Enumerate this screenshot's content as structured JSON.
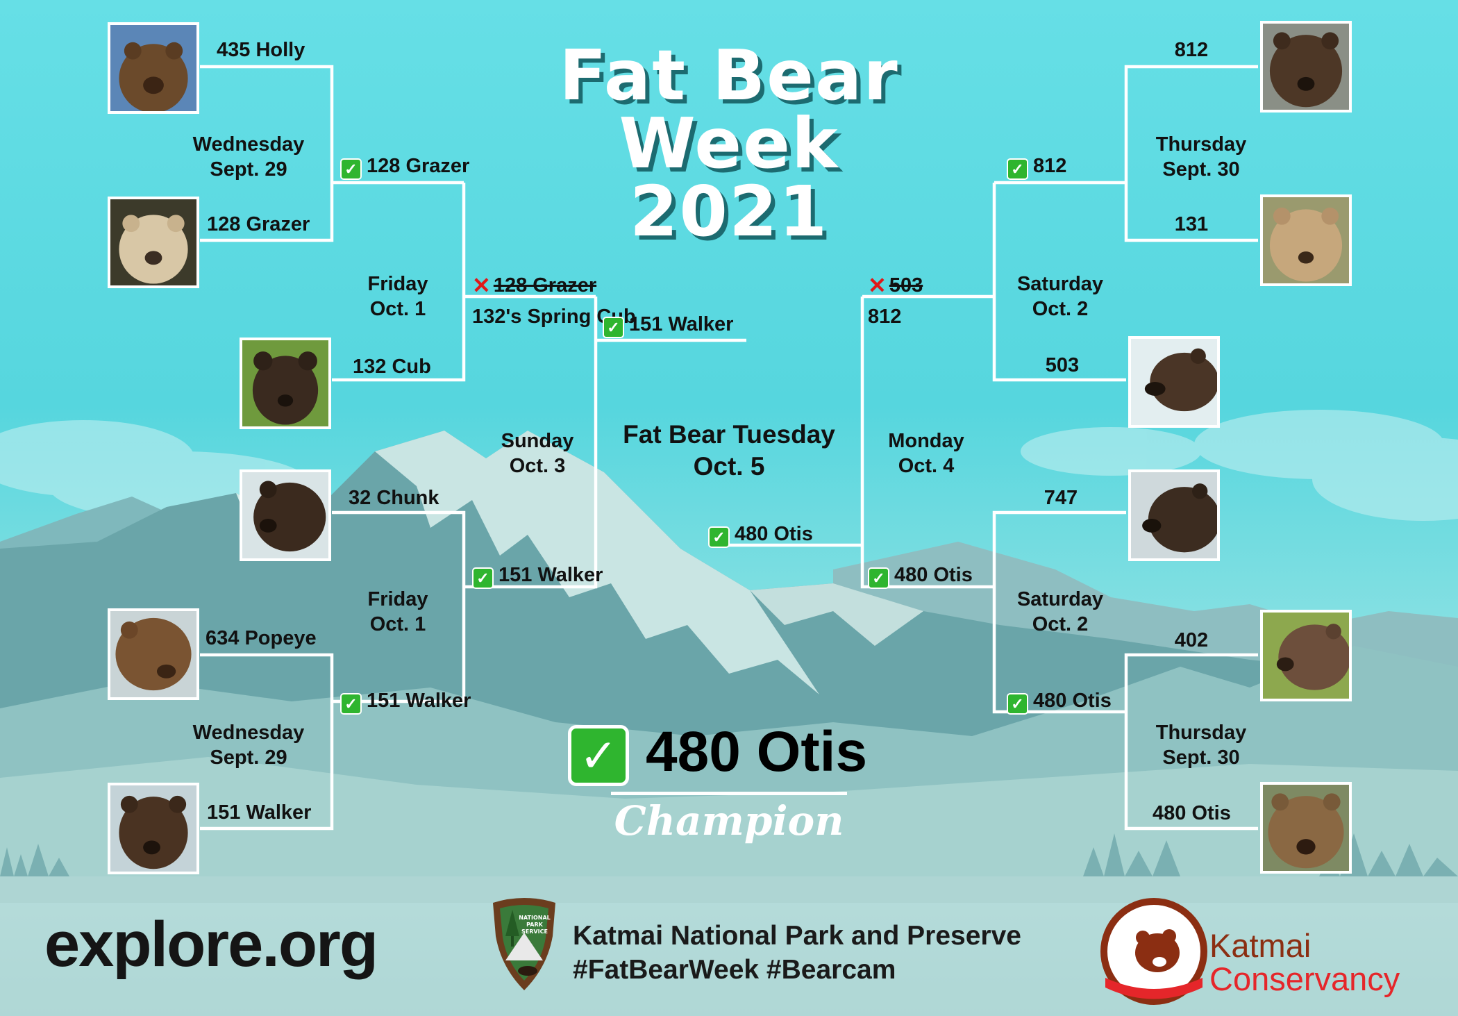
{
  "header": {
    "title_line1": "Fat Bear",
    "title_line2": "Week",
    "title_line3": "2021"
  },
  "colors": {
    "sky": "#5ad8e0",
    "bracket": "#ffffff",
    "check": "#2fb52f",
    "cross": "#e01818",
    "kc_brown": "#8b2e12",
    "kc_red": "#e5262a"
  },
  "rounds": {
    "left_r1_top": {
      "line1": "Wednesday",
      "line2": "Sept. 29"
    },
    "left_r2_top": {
      "line1": "Friday",
      "line2": "Oct. 1"
    },
    "left_r3": {
      "line1": "Sunday",
      "line2": "Oct. 3"
    },
    "left_r2_bottom": {
      "line1": "Friday",
      "line2": "Oct. 1"
    },
    "left_r1_bottom": {
      "line1": "Wednesday",
      "line2": "Sept. 29"
    },
    "right_r1_top": {
      "line1": "Thursday",
      "line2": "Sept. 30"
    },
    "right_r2_top": {
      "line1": "Saturday",
      "line2": "Oct. 2"
    },
    "right_r3": {
      "line1": "Monday",
      "line2": "Oct. 4"
    },
    "right_r2_bottom": {
      "line1": "Saturday",
      "line2": "Oct. 2"
    },
    "right_r1_bottom": {
      "line1": "Thursday",
      "line2": "Sept. 30"
    },
    "final": {
      "line1": "Fat Bear Tuesday",
      "line2": "Oct. 5"
    }
  },
  "bears": {
    "b435": "435 Holly",
    "b128": "128 Grazer",
    "b132": "132 Cub",
    "b32": "32 Chunk",
    "b634": "634 Popeye",
    "b151": "151 Walker",
    "b812": "812",
    "b131": "131",
    "b503": "503",
    "b747": "747",
    "b402": "402",
    "b480": "480 Otis"
  },
  "results": {
    "l_r1a_winner": "128 Grazer",
    "l_r2a_loser": "128 Grazer",
    "l_r2a_winner": "132's Spring Cub",
    "l_r3_winner": "151 Walker",
    "l_r2b_winner": "151 Walker",
    "l_r1b_winner": "151 Walker",
    "r_r1a_winner": "812",
    "r_r2a_loser": "503",
    "r_r2a_winner": "812",
    "r_r3_winner": "480 Otis",
    "r_r2b_winner": "480 Otis",
    "r_r1b_winner": "480 Otis",
    "final_winner": "480 Otis"
  },
  "icons": {
    "check": "✓",
    "cross": "✕"
  },
  "champion": {
    "name": "480 Otis",
    "label": "Champion"
  },
  "footer": {
    "explore_logo": "explore.org",
    "park_name": "Katmai National Park and Preserve",
    "hashtags": "#FatBearWeek #Bearcam",
    "conservancy_line1": "Katmai",
    "conservancy_line2": "Conservancy",
    "nps_badge_text": [
      "NATIONAL",
      "PARK",
      "SERVICE"
    ]
  }
}
